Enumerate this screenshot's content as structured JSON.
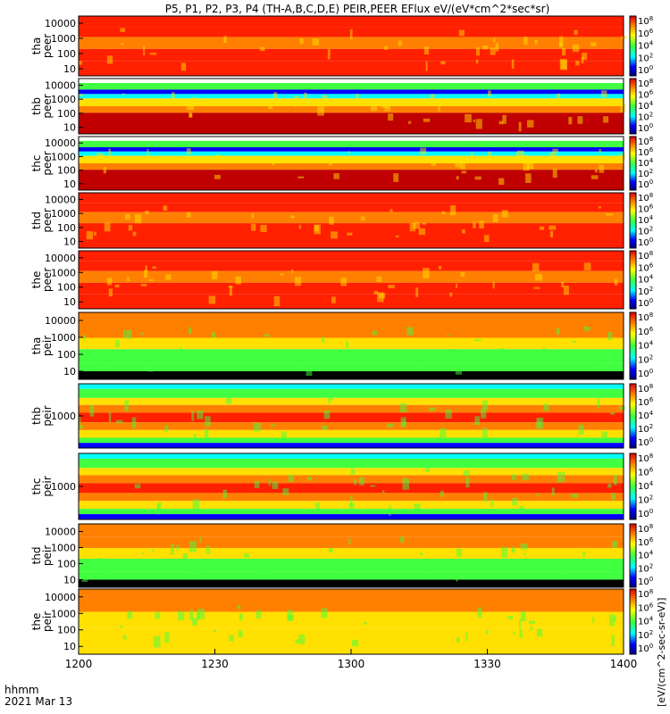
{
  "chart_data": {
    "type": "heatmap",
    "title": "P5, P1, P2, P3, P4 (TH-A,B,C,D,E) PEIR,PEER EFlux eV/(eV*cm^2*sec*sr)",
    "x_ticks": [
      "1200",
      "1230",
      "1300",
      "1330",
      "1400"
    ],
    "x_range": [
      "12:00",
      "14:00"
    ],
    "time_label": "hhmm",
    "date_label": "2021 Mar 13",
    "colorbar_label": "[eV/(cm^2-sec-sr-eV)]",
    "colorbar_ticks": [
      {
        "base": "10",
        "exp": "8"
      },
      {
        "base": "10",
        "exp": "6"
      },
      {
        "base": "10",
        "exp": "4"
      },
      {
        "base": "10",
        "exp": "2"
      },
      {
        "base": "10",
        "exp": "0"
      }
    ],
    "panels": [
      {
        "label": [
          "tha",
          "peer"
        ],
        "y_ticks": [
          "10000",
          "1000",
          "100",
          "10"
        ],
        "bands": "peer_a"
      },
      {
        "label": [
          "thb",
          "peer"
        ],
        "y_ticks": [
          "10000",
          "1000",
          "100",
          "10"
        ],
        "bands": "peer_b"
      },
      {
        "label": [
          "thc",
          "peer"
        ],
        "y_ticks": [
          "10000",
          "1000",
          "100",
          "10"
        ],
        "bands": "peer_b"
      },
      {
        "label": [
          "thd",
          "peer"
        ],
        "y_ticks": [
          "10000",
          "1000",
          "100",
          "10"
        ],
        "bands": "peer_a"
      },
      {
        "label": [
          "the",
          "peer"
        ],
        "y_ticks": [
          "10000",
          "1000",
          "100",
          "10"
        ],
        "bands": "peer_a"
      },
      {
        "label": [
          "tha",
          "peir"
        ],
        "y_ticks": [
          "10000",
          "1000",
          "100",
          "10"
        ],
        "bands": "peir_a"
      },
      {
        "label": [
          "thb",
          "peir"
        ],
        "y_ticks": [
          "1000"
        ],
        "bands": "peir_b"
      },
      {
        "label": [
          "thc",
          "peir"
        ],
        "y_ticks": [
          "1000"
        ],
        "bands": "peir_b"
      },
      {
        "label": [
          "thd",
          "peir"
        ],
        "y_ticks": [
          "10000",
          "1000",
          "100",
          "10"
        ],
        "bands": "peir_a"
      },
      {
        "label": [
          "the",
          "peir"
        ],
        "y_ticks": [
          "10000",
          "1000",
          "100",
          "10"
        ],
        "bands": "peir_e"
      }
    ],
    "colors": {
      "dark_red": "#c00000",
      "red": "#ff2000",
      "orange": "#ff8000",
      "yellow": "#ffe000",
      "green": "#40ff40",
      "cyan": "#00ffff",
      "blue": "#0000ff",
      "black": "#000000"
    }
  }
}
